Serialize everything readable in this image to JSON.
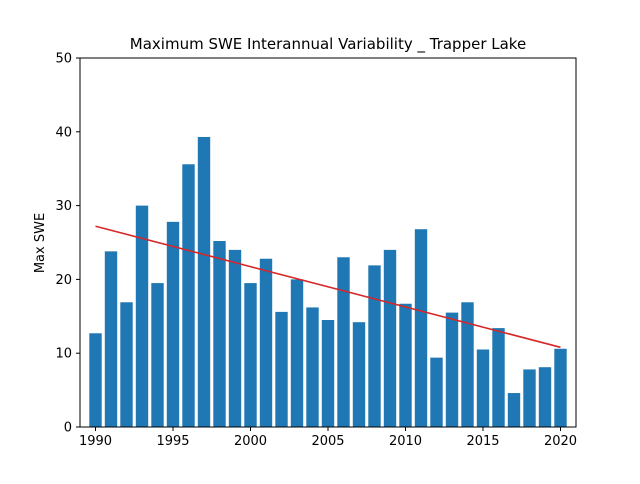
{
  "chart_data": {
    "type": "bar",
    "title": "Maximum SWE Interannual Variability _ Trapper Lake",
    "xlabel": "",
    "ylabel": "Max SWE",
    "xlim": [
      1989,
      2021
    ],
    "ylim": [
      0,
      50
    ],
    "x_ticks": [
      1990,
      1995,
      2000,
      2005,
      2010,
      2015,
      2020
    ],
    "y_ticks": [
      0,
      10,
      20,
      30,
      40,
      50
    ],
    "grid": false,
    "bar_color": "#1f77b4",
    "trend_color": "#d62728",
    "series": [
      {
        "x": [
          1990,
          1991,
          1992,
          1993,
          1994,
          1995,
          1996,
          1997,
          1998,
          1999,
          2000,
          2001,
          2002,
          2003,
          2004,
          2005,
          2006,
          2007,
          2008,
          2009,
          2010,
          2011,
          2012,
          2013,
          2014,
          2015,
          2016,
          2017,
          2018,
          2019,
          2020
        ],
        "values": [
          12.7,
          23.8,
          16.9,
          30.0,
          19.5,
          27.8,
          35.6,
          39.3,
          25.2,
          24.0,
          19.5,
          22.8,
          15.6,
          20.0,
          16.2,
          14.5,
          23.0,
          14.2,
          21.9,
          24.0,
          16.7,
          26.8,
          9.4,
          15.5,
          16.9,
          10.5,
          13.4,
          4.6,
          7.8,
          8.1,
          10.6
        ]
      }
    ],
    "trend_line": {
      "x": [
        1990,
        2020
      ],
      "y": [
        27.2,
        10.8
      ]
    }
  }
}
